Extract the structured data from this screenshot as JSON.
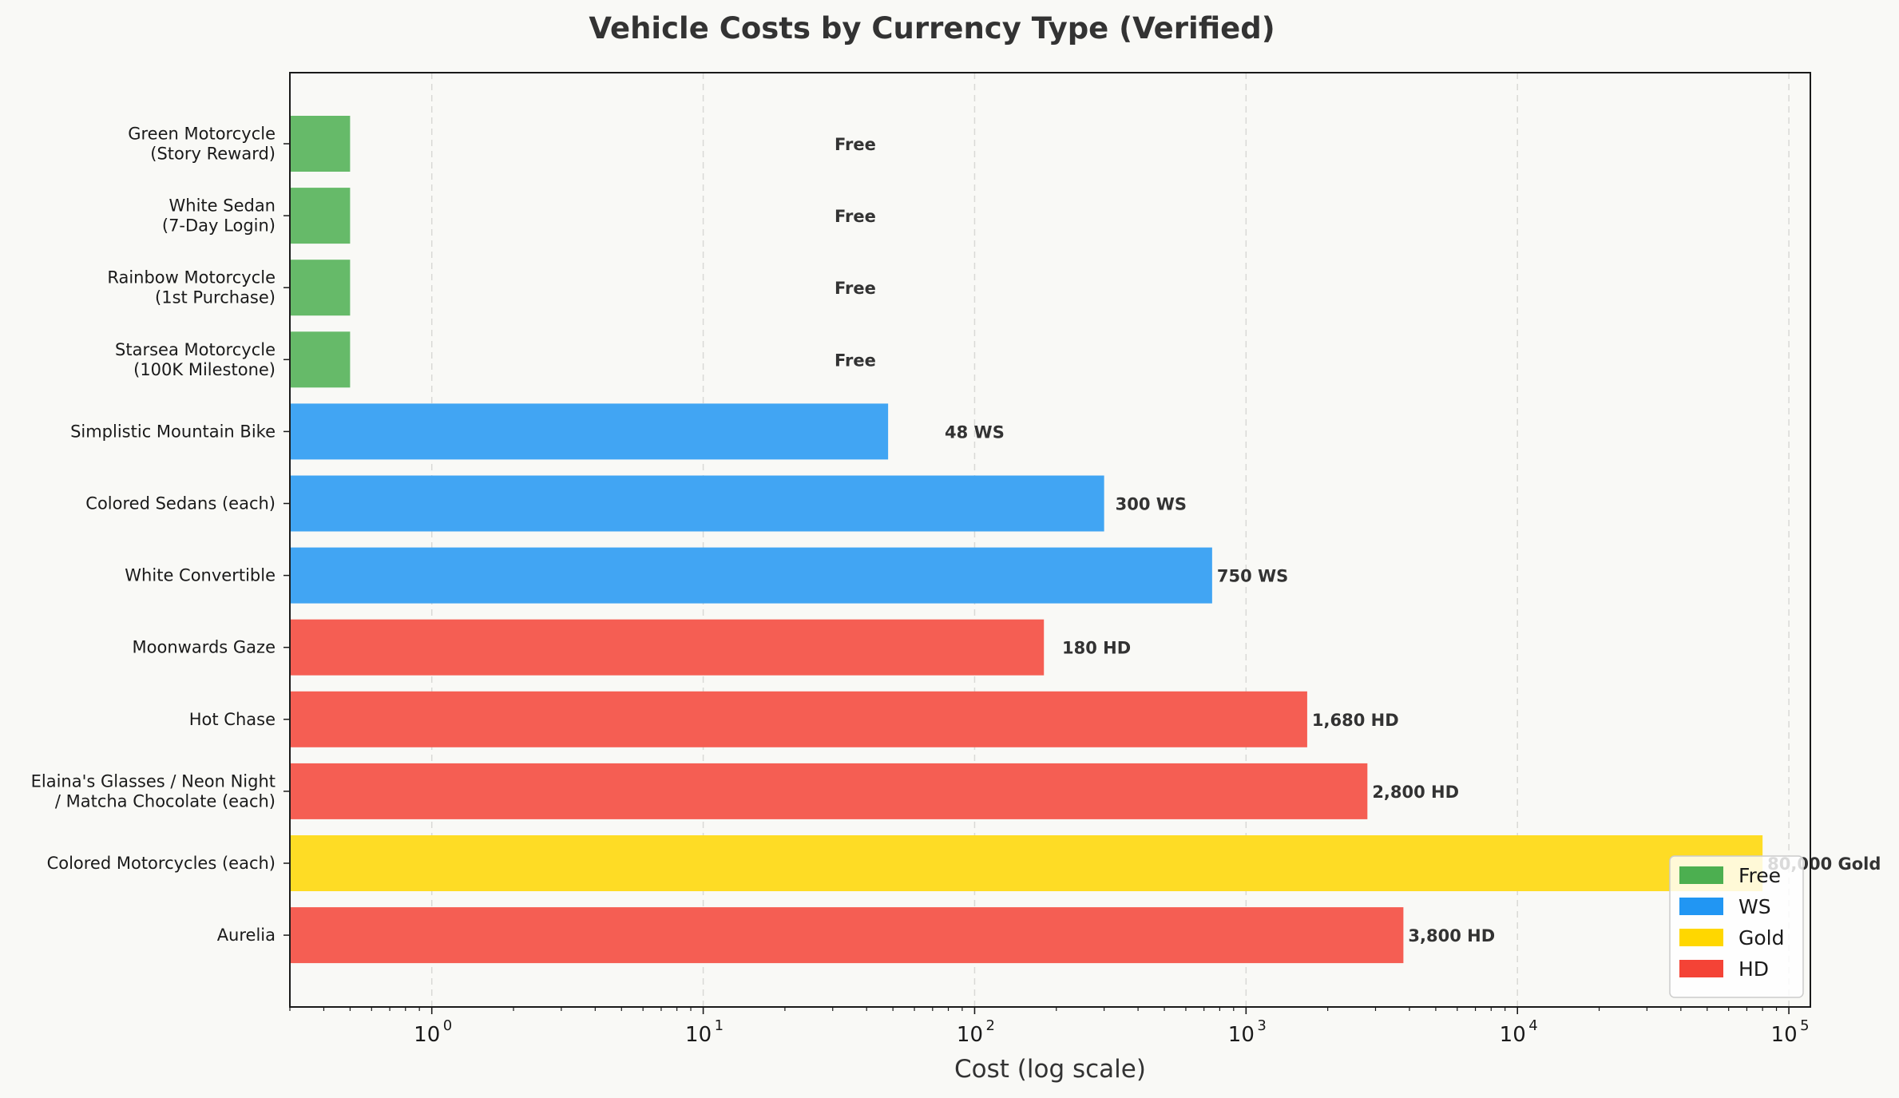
{
  "chart_data": {
    "type": "bar",
    "orientation": "horizontal",
    "title": "Vehicle Costs by Currency Type (Verified)",
    "xlabel": "Cost (log scale)",
    "ylabel": "",
    "x_scale": "log",
    "xlim": [
      0.3,
      120000
    ],
    "grid": "x-major-dashed",
    "legend_position": "bottom-right",
    "x_ticks": [
      {
        "value": 1,
        "base": "10",
        "exp": "0"
      },
      {
        "value": 10,
        "base": "10",
        "exp": "1"
      },
      {
        "value": 100,
        "base": "10",
        "exp": "2"
      },
      {
        "value": 1000,
        "base": "10",
        "exp": "3"
      },
      {
        "value": 10000,
        "base": "10",
        "exp": "4"
      },
      {
        "value": 100000,
        "base": "10",
        "exp": "5"
      }
    ],
    "currency_colors": {
      "Free": "#4caf50",
      "WS": "#2196f3",
      "Gold": "#ffd700",
      "HD": "#f44336"
    },
    "legend": [
      "Free",
      "WS",
      "Gold",
      "HD"
    ],
    "bars": [
      {
        "label": [
          "Green Motorcycle",
          "(Story Reward)"
        ],
        "value": 0.5,
        "currency": "Free",
        "value_label": "Free"
      },
      {
        "label": [
          "White Sedan",
          "(7-Day Login)"
        ],
        "value": 0.5,
        "currency": "Free",
        "value_label": "Free"
      },
      {
        "label": [
          "Rainbow Motorcycle",
          "(1st Purchase)"
        ],
        "value": 0.5,
        "currency": "Free",
        "value_label": "Free"
      },
      {
        "label": [
          "Starsea Motorcycle",
          "(100K Milestone)"
        ],
        "value": 0.5,
        "currency": "Free",
        "value_label": "Free"
      },
      {
        "label": [
          "Simplistic Mountain Bike"
        ],
        "value": 48,
        "currency": "WS",
        "value_label": "48 WS"
      },
      {
        "label": [
          "Colored Sedans (each)"
        ],
        "value": 300,
        "currency": "WS",
        "value_label": "300 WS"
      },
      {
        "label": [
          "White Convertible"
        ],
        "value": 750,
        "currency": "WS",
        "value_label": "750 WS"
      },
      {
        "label": [
          "Moonwards Gaze"
        ],
        "value": 180,
        "currency": "HD",
        "value_label": "180 HD"
      },
      {
        "label": [
          "Hot Chase"
        ],
        "value": 1680,
        "currency": "HD",
        "value_label": "1,680 HD"
      },
      {
        "label": [
          "Elaina's Glasses / Neon Night",
          "/ Matcha Chocolate (each)"
        ],
        "value": 2800,
        "currency": "HD",
        "value_label": "2,800 HD"
      },
      {
        "label": [
          "Colored Motorcycles (each)"
        ],
        "value": 80000,
        "currency": "Gold",
        "value_label": "80,000 Gold"
      },
      {
        "label": [
          "Aurelia"
        ],
        "value": 3800,
        "currency": "HD",
        "value_label": "3,800 HD"
      }
    ]
  }
}
